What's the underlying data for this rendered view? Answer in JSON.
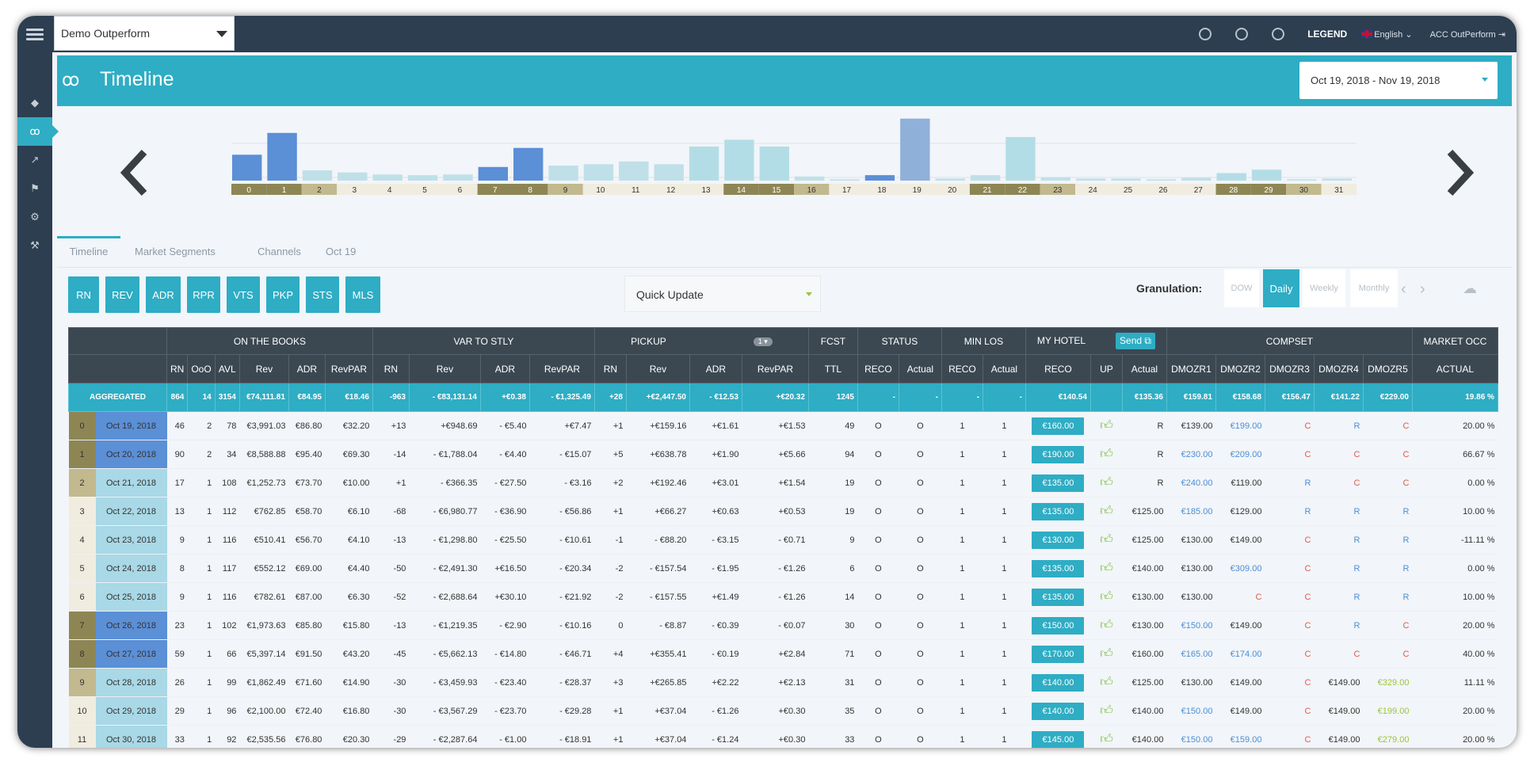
{
  "app": {
    "hotel_select": "Demo Outperform",
    "legend": "LEGEND",
    "language": "English",
    "account": "ACC OutPerform",
    "page_title": "Timeline",
    "date_range": "Oct 19, 2018 - Nov 19, 2018"
  },
  "sidebar": {
    "items": [
      {
        "icon": "diamond-icon",
        "active": false
      },
      {
        "icon": "glasses-icon",
        "active": true
      },
      {
        "icon": "trend-icon",
        "active": false
      },
      {
        "icon": "flag-icon",
        "active": false
      },
      {
        "icon": "gear-icon",
        "active": false
      },
      {
        "icon": "wrench-icon",
        "active": false
      }
    ]
  },
  "tabs": [
    "Timeline",
    "Market Segments",
    "Channels",
    "Oct 19"
  ],
  "metric_buttons": [
    "RN",
    "REV",
    "ADR",
    "RPR",
    "VTS",
    "PKP",
    "STS",
    "MLS"
  ],
  "quick_update": "Quick Update",
  "granulation": {
    "label": "Granulation:",
    "options": [
      "DOW",
      "Daily",
      "Weekly",
      "Monthly"
    ],
    "active": "Daily"
  },
  "chart_data": {
    "type": "bar",
    "categories": [
      "0",
      "1",
      "2",
      "3",
      "4",
      "5",
      "6",
      "7",
      "8",
      "9",
      "10",
      "11",
      "12",
      "13",
      "14",
      "15",
      "16",
      "17",
      "18",
      "19",
      "20",
      "21",
      "22",
      "23",
      "24",
      "25",
      "26",
      "27",
      "28",
      "29",
      "30",
      "31"
    ],
    "values": [
      38,
      70,
      15,
      12,
      9,
      8,
      9,
      20,
      48,
      22,
      24,
      28,
      24,
      50,
      60,
      50,
      6,
      2,
      8,
      91,
      3,
      8,
      64,
      5,
      3,
      3,
      2,
      4,
      11,
      16,
      2,
      3
    ],
    "colors": [
      "#5b8fd6",
      "#5b8fd6",
      "#bfe0e8",
      "#bfe0e8",
      "#bfe0e8",
      "#bfe0e8",
      "#bfe0e8",
      "#5b8fd6",
      "#5b8fd6",
      "#bfe0e8",
      "#bfe0e8",
      "#bfe0e8",
      "#bfe0e8",
      "#b3dde6",
      "#b3dde6",
      "#b3dde6",
      "#bfe0e8",
      "#bfe0e8",
      "#5b8fd6",
      "#8fb0d8",
      "#bfe0e8",
      "#bfe0e8",
      "#b3dde6",
      "#bfe0e8",
      "#bfe0e8",
      "#bfe0e8",
      "#bfe0e8",
      "#bfe0e8",
      "#b3dde6",
      "#b3dde6",
      "#bfe0e8",
      "#bfe0e8"
    ],
    "label_bg": [
      "dark",
      "dark",
      "light",
      "none",
      "none",
      "none",
      "none",
      "dark",
      "dark",
      "light",
      "none",
      "none",
      "none",
      "none",
      "dark",
      "dark",
      "light",
      "none",
      "none",
      "none",
      "none",
      "dark",
      "dark",
      "light",
      "none",
      "none",
      "none",
      "none",
      "dark",
      "dark",
      "light",
      "none"
    ],
    "ylim": [
      0,
      100
    ],
    "title": "",
    "xlabel": "",
    "ylabel": ""
  },
  "table": {
    "groups": [
      "ON THE BOOKS",
      "VAR TO STLY",
      "PICKUP",
      "FCST",
      "STATUS",
      "MIN LOS",
      "MY HOTEL",
      "COMPSET",
      "MARKET OCC"
    ],
    "pickup_selector": "1",
    "send_label": "Send",
    "columns": [
      "RN",
      "OoO",
      "AVL",
      "Rev",
      "ADR",
      "RevPAR",
      "RN",
      "Rev",
      "ADR",
      "RevPAR",
      "RN",
      "Rev",
      "ADR",
      "RevPAR",
      "TTL",
      "RECO",
      "Actual",
      "RECO",
      "Actual",
      "RECO",
      "UP",
      "Actual",
      "DMOZR1",
      "DMOZR2",
      "DMOZR3",
      "DMOZR4",
      "DMOZR5",
      "ACTUAL"
    ],
    "aggregated": [
      "AGGREGATED",
      "864",
      "14",
      "3154",
      "€74,111.81",
      "€84.95",
      "€18.46",
      "-963",
      "- €83,131.14",
      "+€0.38",
      "- €1,325.49",
      "+28",
      "+€2,447.50",
      "- €12.53",
      "+€20.32",
      "1245",
      "-",
      "-",
      "-",
      "-",
      "€140.54",
      "",
      "€135.36",
      "€159.81",
      "€158.68",
      "€156.47",
      "€141.22",
      "€229.00",
      "19.86 %"
    ],
    "rows": [
      {
        "idx": "0",
        "date": "Oct 19, 2018",
        "rn": "46",
        "ooo": "2",
        "avl": "78",
        "rev": "€3,991.03",
        "adr": "€86.80",
        "revpar": "€32.20",
        "v_rn": "+13",
        "v_rev": "+€948.69",
        "v_adr": "- €5.40",
        "v_revpar": "+€7.47",
        "p_rn": "+1",
        "p_rev": "+€159.16",
        "p_adr": "+€1.61",
        "p_revpar": "+€1.53",
        "ttl": "49",
        "s_reco": "O",
        "s_act": "O",
        "m_reco": "1",
        "m_act": "1",
        "reco": "€160.00",
        "actual": "R",
        "c1": "€139.00",
        "c2": "€199.00",
        "c3": "C",
        "c4": "R",
        "c5": "C",
        "occ": "20.00 %"
      },
      {
        "idx": "1",
        "date": "Oct 20, 2018",
        "rn": "90",
        "ooo": "2",
        "avl": "34",
        "rev": "€8,588.88",
        "adr": "€95.40",
        "revpar": "€69.30",
        "v_rn": "-14",
        "v_rev": "- €1,788.04",
        "v_adr": "- €4.40",
        "v_revpar": "- €15.07",
        "p_rn": "+5",
        "p_rev": "+€638.78",
        "p_adr": "+€1.90",
        "p_revpar": "+€5.66",
        "ttl": "94",
        "s_reco": "O",
        "s_act": "O",
        "m_reco": "1",
        "m_act": "1",
        "reco": "€190.00",
        "actual": "R",
        "c1": "€230.00",
        "c2": "€209.00",
        "c3": "C",
        "c4": "C",
        "c5": "C",
        "occ": "66.67 %"
      },
      {
        "idx": "2",
        "date": "Oct 21, 2018",
        "rn": "17",
        "ooo": "1",
        "avl": "108",
        "rev": "€1,252.73",
        "adr": "€73.70",
        "revpar": "€10.00",
        "v_rn": "+1",
        "v_rev": "- €366.35",
        "v_adr": "- €27.50",
        "v_revpar": "- €3.16",
        "p_rn": "+2",
        "p_rev": "+€192.46",
        "p_adr": "+€3.01",
        "p_revpar": "+€1.54",
        "ttl": "19",
        "s_reco": "O",
        "s_act": "O",
        "m_reco": "1",
        "m_act": "1",
        "reco": "€135.00",
        "actual": "R",
        "c1": "€240.00",
        "c2": "€119.00",
        "c3": "R",
        "c4": "C",
        "c5": "C",
        "occ": "0.00 %"
      },
      {
        "idx": "3",
        "date": "Oct 22, 2018",
        "rn": "13",
        "ooo": "1",
        "avl": "112",
        "rev": "€762.85",
        "adr": "€58.70",
        "revpar": "€6.10",
        "v_rn": "-68",
        "v_rev": "- €6,980.77",
        "v_adr": "- €36.90",
        "v_revpar": "- €56.86",
        "p_rn": "+1",
        "p_rev": "+€66.27",
        "p_adr": "+€0.63",
        "p_revpar": "+€0.53",
        "ttl": "19",
        "s_reco": "O",
        "s_act": "O",
        "m_reco": "1",
        "m_act": "1",
        "reco": "€135.00",
        "actual": "€125.00",
        "c1": "€185.00",
        "c2": "€129.00",
        "c3": "R",
        "c4": "R",
        "c5": "R",
        "occ": "10.00 %"
      },
      {
        "idx": "4",
        "date": "Oct 23, 2018",
        "rn": "9",
        "ooo": "1",
        "avl": "116",
        "rev": "€510.41",
        "adr": "€56.70",
        "revpar": "€4.10",
        "v_rn": "-13",
        "v_rev": "- €1,298.80",
        "v_adr": "- €25.50",
        "v_revpar": "- €10.61",
        "p_rn": "-1",
        "p_rev": "- €88.20",
        "p_adr": "- €3.15",
        "p_revpar": "- €0.71",
        "ttl": "9",
        "s_reco": "O",
        "s_act": "O",
        "m_reco": "1",
        "m_act": "1",
        "reco": "€130.00",
        "actual": "€125.00",
        "c1": "€130.00",
        "c2": "€149.00",
        "c3": "C",
        "c4": "R",
        "c5": "R",
        "occ": "-11.11 %"
      },
      {
        "idx": "5",
        "date": "Oct 24, 2018",
        "rn": "8",
        "ooo": "1",
        "avl": "117",
        "rev": "€552.12",
        "adr": "€69.00",
        "revpar": "€4.40",
        "v_rn": "-50",
        "v_rev": "- €2,491.30",
        "v_adr": "+€16.50",
        "v_revpar": "- €20.34",
        "p_rn": "-2",
        "p_rev": "- €157.54",
        "p_adr": "- €1.95",
        "p_revpar": "- €1.26",
        "ttl": "6",
        "s_reco": "O",
        "s_act": "O",
        "m_reco": "1",
        "m_act": "1",
        "reco": "€135.00",
        "actual": "€140.00",
        "c1": "€130.00",
        "c2": "€309.00",
        "c3": "C",
        "c4": "R",
        "c5": "R",
        "occ": "0.00 %"
      },
      {
        "idx": "6",
        "date": "Oct 25, 2018",
        "rn": "9",
        "ooo": "1",
        "avl": "116",
        "rev": "€782.61",
        "adr": "€87.00",
        "revpar": "€6.30",
        "v_rn": "-52",
        "v_rev": "- €2,688.64",
        "v_adr": "+€30.10",
        "v_revpar": "- €21.92",
        "p_rn": "-2",
        "p_rev": "- €157.55",
        "p_adr": "+€1.49",
        "p_revpar": "- €1.26",
        "ttl": "14",
        "s_reco": "O",
        "s_act": "O",
        "m_reco": "1",
        "m_act": "1",
        "reco": "€135.00",
        "actual": "€130.00",
        "c1": "€130.00",
        "c2": "C",
        "c3": "C",
        "c4": "R",
        "c5": "R",
        "occ": "10.00 %"
      },
      {
        "idx": "7",
        "date": "Oct 26, 2018",
        "rn": "23",
        "ooo": "1",
        "avl": "102",
        "rev": "€1,973.63",
        "adr": "€85.80",
        "revpar": "€15.80",
        "v_rn": "-13",
        "v_rev": "- €1,219.35",
        "v_adr": "- €2.90",
        "v_revpar": "- €10.16",
        "p_rn": "0",
        "p_rev": "- €8.87",
        "p_adr": "- €0.39",
        "p_revpar": "- €0.07",
        "ttl": "30",
        "s_reco": "O",
        "s_act": "O",
        "m_reco": "1",
        "m_act": "1",
        "reco": "€150.00",
        "actual": "€130.00",
        "c1": "€150.00",
        "c2": "€149.00",
        "c3": "C",
        "c4": "R",
        "c5": "C",
        "occ": "20.00 %"
      },
      {
        "idx": "8",
        "date": "Oct 27, 2018",
        "rn": "59",
        "ooo": "1",
        "avl": "66",
        "rev": "€5,397.14",
        "adr": "€91.50",
        "revpar": "€43.20",
        "v_rn": "-45",
        "v_rev": "- €5,662.13",
        "v_adr": "- €14.80",
        "v_revpar": "- €46.71",
        "p_rn": "+4",
        "p_rev": "+€355.41",
        "p_adr": "- €0.19",
        "p_revpar": "+€2.84",
        "ttl": "71",
        "s_reco": "O",
        "s_act": "O",
        "m_reco": "1",
        "m_act": "1",
        "reco": "€170.00",
        "actual": "€160.00",
        "c1": "€165.00",
        "c2": "€174.00",
        "c3": "C",
        "c4": "C",
        "c5": "C",
        "occ": "40.00 %"
      },
      {
        "idx": "9",
        "date": "Oct 28, 2018",
        "rn": "26",
        "ooo": "1",
        "avl": "99",
        "rev": "€1,862.49",
        "adr": "€71.60",
        "revpar": "€14.90",
        "v_rn": "-30",
        "v_rev": "- €3,459.93",
        "v_adr": "- €23.40",
        "v_revpar": "- €28.37",
        "p_rn": "+3",
        "p_rev": "+€265.85",
        "p_adr": "+€2.22",
        "p_revpar": "+€2.13",
        "ttl": "31",
        "s_reco": "O",
        "s_act": "O",
        "m_reco": "1",
        "m_act": "1",
        "reco": "€140.00",
        "actual": "€125.00",
        "c1": "€130.00",
        "c2": "€149.00",
        "c3": "C",
        "c4": "€149.00",
        "c5": "€329.00",
        "occ": "11.11 %"
      },
      {
        "idx": "10",
        "date": "Oct 29, 2018",
        "rn": "29",
        "ooo": "1",
        "avl": "96",
        "rev": "€2,100.00",
        "adr": "€72.40",
        "revpar": "€16.80",
        "v_rn": "-30",
        "v_rev": "- €3,567.29",
        "v_adr": "- €23.70",
        "v_revpar": "- €29.28",
        "p_rn": "+1",
        "p_rev": "+€37.04",
        "p_adr": "- €1.26",
        "p_revpar": "+€0.30",
        "ttl": "35",
        "s_reco": "O",
        "s_act": "O",
        "m_reco": "1",
        "m_act": "1",
        "reco": "€140.00",
        "actual": "€140.00",
        "c1": "€150.00",
        "c2": "€149.00",
        "c3": "C",
        "c4": "€149.00",
        "c5": "€199.00",
        "occ": "20.00 %"
      },
      {
        "idx": "11",
        "date": "Oct 30, 2018",
        "rn": "33",
        "ooo": "1",
        "avl": "92",
        "rev": "€2,535.56",
        "adr": "€76.80",
        "revpar": "€20.30",
        "v_rn": "-29",
        "v_rev": "- €2,287.64",
        "v_adr": "- €1.00",
        "v_revpar": "- €18.91",
        "p_rn": "+1",
        "p_rev": "+€37.04",
        "p_adr": "- €1.24",
        "p_revpar": "+€0.30",
        "ttl": "33",
        "s_reco": "O",
        "s_act": "O",
        "m_reco": "1",
        "m_act": "1",
        "reco": "€145.00",
        "actual": "€140.00",
        "c1": "€150.00",
        "c2": "€159.00",
        "c3": "C",
        "c4": "€149.00",
        "c5": "€279.00",
        "occ": "20.00 %"
      }
    ],
    "row_idx_colors": [
      "#8d8654",
      "#8d8654",
      "#c2b98e",
      "#f0ecdf",
      "#f0ecdf",
      "#f0ecdf",
      "#f0ecdf",
      "#8d8654",
      "#8d8654",
      "#c2b98e",
      "#f0ecdf",
      "#f0ecdf"
    ],
    "row_date_colors": [
      "#5b8fd6",
      "#5b8fd6",
      "#a9d8e6",
      "#a9d8e6",
      "#a9d8e6",
      "#a9d8e6",
      "#a9d8e6",
      "#5b8fd6",
      "#5b8fd6",
      "#a9d8e6",
      "#a9d8e6",
      "#a9d8e6"
    ]
  }
}
